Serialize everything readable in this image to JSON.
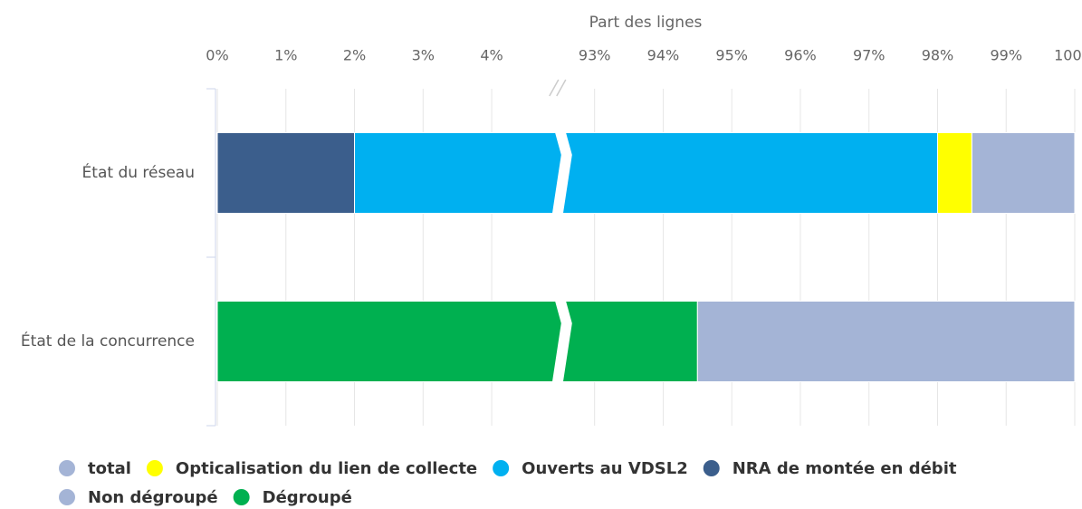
{
  "chart_data": {
    "type": "stacked_bar_horizontal",
    "x_axis_title": "Part des lignes",
    "categories": [
      "État du réseau",
      "État de la concurrence"
    ],
    "xlim": [
      0,
      100
    ],
    "axis_break": [
      5,
      92.5
    ],
    "xticks": [
      {
        "value": 0,
        "label": "0%"
      },
      {
        "value": 1,
        "label": "1%"
      },
      {
        "value": 2,
        "label": "2%"
      },
      {
        "value": 3,
        "label": "3%"
      },
      {
        "value": 4,
        "label": "4%"
      },
      {
        "value": 93,
        "label": "93%"
      },
      {
        "value": 94,
        "label": "94%"
      },
      {
        "value": 95,
        "label": "95%"
      },
      {
        "value": 96,
        "label": "96%"
      },
      {
        "value": 97,
        "label": "97%"
      },
      {
        "value": 98,
        "label": "98%"
      },
      {
        "value": 99,
        "label": "99%"
      },
      {
        "value": 100,
        "label": "100%"
      }
    ],
    "grid": true,
    "legend": "bottom",
    "series": [
      {
        "name": "total",
        "color": "#a4b4d6",
        "values": [
          1.5,
          null
        ]
      },
      {
        "name": "Optical­isation du lien de collecte",
        "color": "#ffff00",
        "values": [
          0.5,
          null
        ]
      },
      {
        "name": "Ouverts au VDSL2",
        "color": "#00b0f0",
        "values": [
          96,
          null
        ]
      },
      {
        "name": "NRA de montée en débit",
        "color": "#3b5e8c",
        "values": [
          2,
          null
        ]
      },
      {
        "name": "Non dégroupé",
        "color": "#a4b4d6",
        "values": [
          null,
          5.5
        ]
      },
      {
        "name": "Dégroupé",
        "color": "#00b050",
        "values": [
          null,
          94.5
        ]
      }
    ]
  }
}
